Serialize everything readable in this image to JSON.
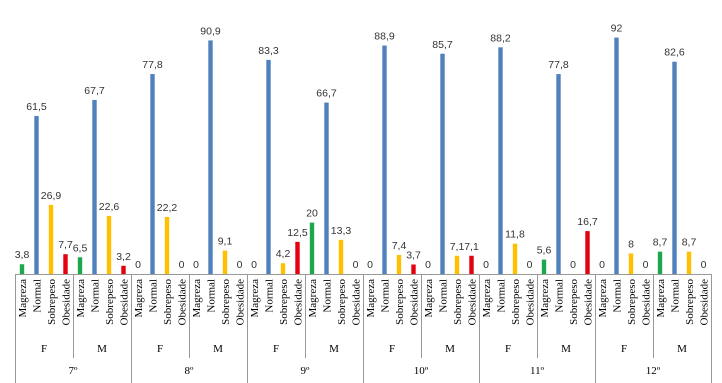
{
  "chart_data": {
    "type": "bar",
    "groups": [
      "7º",
      "8º",
      "9º",
      "10º",
      "11º",
      "12º"
    ],
    "categories": [
      "F",
      "M",
      "F",
      "M",
      "F",
      "M",
      "F",
      "M",
      "F",
      "M",
      "F",
      "M"
    ],
    "ylim": [
      0,
      100
    ],
    "series": [
      {
        "name": "Magreza",
        "color": "#1ea84e",
        "values": [
          3.8,
          6.5,
          0,
          0,
          0,
          20,
          0,
          0,
          0,
          5.6,
          0,
          8.7
        ],
        "value_labels": [
          "3,8",
          "6,5",
          "0",
          "0",
          "0",
          "20",
          "0",
          "0",
          "0",
          "5,6",
          "0",
          "8,7"
        ]
      },
      {
        "name": "Normal",
        "color": "#4f81bd",
        "values": [
          61.5,
          67.7,
          77.8,
          90.9,
          83.3,
          66.7,
          88.9,
          85.7,
          88.2,
          77.8,
          92,
          82.6
        ],
        "value_labels": [
          "61,5",
          "67,7",
          "77,8",
          "90,9",
          "83,3",
          "66,7",
          "88,9",
          "85,7",
          "88,2",
          "77,8",
          "92",
          "82,6"
        ]
      },
      {
        "name": "Sobrepeso",
        "color": "#ffc000",
        "values": [
          26.9,
          22.6,
          22.2,
          9.1,
          4.2,
          13.3,
          7.4,
          7.1,
          11.8,
          0,
          8,
          8.7
        ],
        "value_labels": [
          "26,9",
          "22,6",
          "22,2",
          "9,1",
          "4,2",
          "13,3",
          "7,4",
          "7,1",
          "11,8",
          "0",
          "8",
          "8,7"
        ]
      },
      {
        "name": "Obesidade",
        "color": "#e3000f",
        "values": [
          7.7,
          3.2,
          0,
          0,
          12.5,
          0,
          3.7,
          7.1,
          0,
          16.7,
          0,
          0
        ],
        "value_labels": [
          "7,7",
          "3,2",
          "0",
          "0",
          "12,5",
          "0",
          "3,7",
          "7,1",
          "0",
          "16,7",
          "0",
          "0"
        ]
      }
    ]
  }
}
